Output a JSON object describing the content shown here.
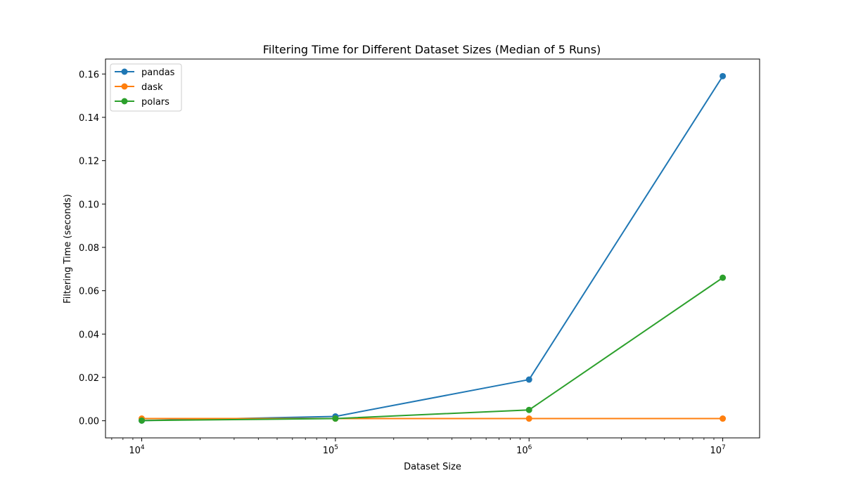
{
  "chart_data": {
    "type": "line",
    "title": "Filtering Time for Different Dataset Sizes (Median of 5 Runs)",
    "xlabel": "Dataset Size",
    "ylabel": "Filtering Time (seconds)",
    "x": [
      10000,
      100000,
      1000000,
      10000000
    ],
    "xscale": "log",
    "xlim": [
      6500,
      15500000
    ],
    "ylim": [
      -0.0079,
      0.1669
    ],
    "grid": false,
    "legend_position": "top-left",
    "x_ticks": [
      {
        "value": 10000,
        "base": "10",
        "exp": "4"
      },
      {
        "value": 100000,
        "base": "10",
        "exp": "5"
      },
      {
        "value": 1000000,
        "base": "10",
        "exp": "6"
      },
      {
        "value": 10000000,
        "base": "10",
        "exp": "7"
      }
    ],
    "y_ticks": [
      {
        "value": 0.0,
        "label": "0.00"
      },
      {
        "value": 0.02,
        "label": "0.02"
      },
      {
        "value": 0.04,
        "label": "0.04"
      },
      {
        "value": 0.06,
        "label": "0.06"
      },
      {
        "value": 0.08,
        "label": "0.08"
      },
      {
        "value": 0.1,
        "label": "0.10"
      },
      {
        "value": 0.12,
        "label": "0.12"
      },
      {
        "value": 0.14,
        "label": "0.14"
      },
      {
        "value": 0.16,
        "label": "0.16"
      }
    ],
    "series": [
      {
        "name": "pandas",
        "color": "#1f77b4",
        "values": [
          0.0001,
          0.002,
          0.019,
          0.159
        ]
      },
      {
        "name": "dask",
        "color": "#ff7f0e",
        "values": [
          0.001,
          0.001,
          0.001,
          0.001
        ]
      },
      {
        "name": "polars",
        "color": "#2ca02c",
        "values": [
          0.0001,
          0.001,
          0.005,
          0.066
        ]
      }
    ]
  }
}
